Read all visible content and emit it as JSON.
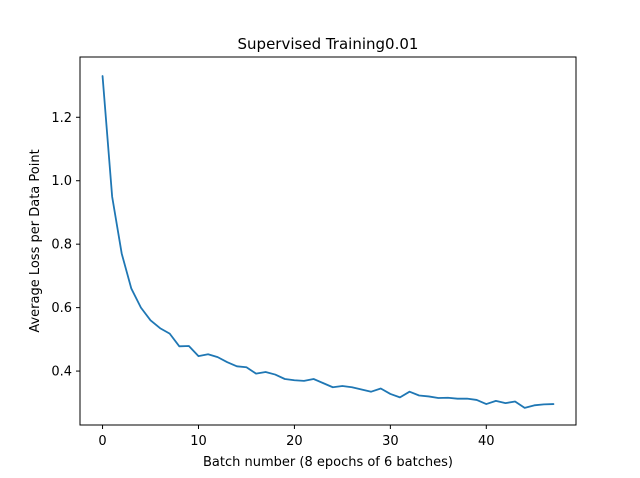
{
  "chart_data": {
    "type": "line",
    "title": "Supervised Training0.01",
    "xlabel": "Batch number (8 epochs of 6 batches)",
    "ylabel": "Average Loss per Data Point",
    "xlim": [
      -2.35,
      49.35
    ],
    "ylim": [
      0.23,
      1.39
    ],
    "xticks": [
      0,
      10,
      20,
      30,
      40
    ],
    "yticks": [
      0.4,
      0.6,
      0.8,
      1.0,
      1.2
    ],
    "xtick_labels": [
      "0",
      "10",
      "20",
      "30",
      "40"
    ],
    "ytick_labels": [
      "0.4",
      "0.6",
      "0.8",
      "1.0",
      "1.2"
    ],
    "grid": false,
    "series": [
      {
        "color": "#1f77b4",
        "x": [
          0,
          1,
          2,
          3,
          4,
          5,
          6,
          7,
          8,
          9,
          10,
          11,
          12,
          13,
          14,
          15,
          16,
          17,
          18,
          19,
          20,
          21,
          22,
          23,
          24,
          25,
          26,
          27,
          28,
          29,
          30,
          31,
          32,
          33,
          34,
          35,
          36,
          37,
          38,
          39,
          40,
          41,
          42,
          43,
          44,
          45,
          46,
          47
        ],
        "y": [
          1.33,
          0.95,
          0.77,
          0.66,
          0.6,
          0.56,
          0.535,
          0.518,
          0.478,
          0.479,
          0.447,
          0.453,
          0.444,
          0.428,
          0.415,
          0.412,
          0.392,
          0.397,
          0.389,
          0.375,
          0.371,
          0.369,
          0.375,
          0.362,
          0.349,
          0.353,
          0.349,
          0.342,
          0.335,
          0.345,
          0.328,
          0.317,
          0.335,
          0.323,
          0.32,
          0.315,
          0.316,
          0.313,
          0.313,
          0.309,
          0.296,
          0.306,
          0.299,
          0.304,
          0.284,
          0.292,
          0.295,
          0.296
        ]
      }
    ]
  }
}
